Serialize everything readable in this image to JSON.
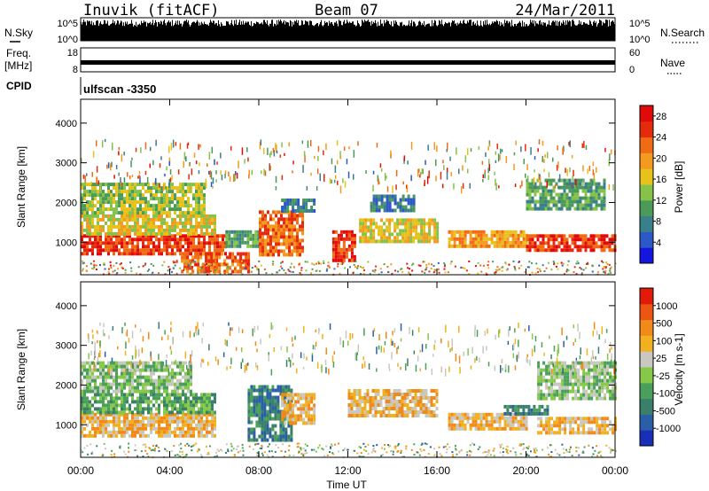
{
  "header": {
    "station": "Inuvik (fitACF)",
    "beam": "Beam 07",
    "date": "24/Mar/2011"
  },
  "top_panels": {
    "nsky_label": "N.Sky",
    "nsky_ticks": [
      "10^5",
      "10^0"
    ],
    "nsearch_label": "N.Search",
    "nsearch_ticks": [
      "10^5",
      "10^0"
    ],
    "freq_label_1": "Freq.",
    "freq_label_2": "[MHz]",
    "freq_ticks": [
      "18",
      "8"
    ],
    "nave_label": "Nave",
    "nave_ticks": [
      "60",
      "0"
    ],
    "cpid_label": "CPID",
    "cpid_value": "ulfscan -3350"
  },
  "chart_data": [
    {
      "type": "heatmap",
      "title": "",
      "xlabel": "Time UT",
      "ylabel": "Slant Range [km]",
      "x_ticks": [
        "00:00",
        "04:00",
        "08:00",
        "12:00",
        "16:00",
        "20:00",
        "00:00"
      ],
      "y_ticks": [
        1000,
        2000,
        3000,
        4000
      ],
      "ylim": [
        180,
        4600
      ],
      "colorbar": {
        "label": "Power [dB]",
        "ticks": [
          4,
          8,
          12,
          16,
          20,
          24,
          28
        ],
        "range": [
          0,
          30
        ],
        "colors": [
          "#1515e0",
          "#2d58c8",
          "#3a7f8c",
          "#4c9a5a",
          "#86c24a",
          "#e6c21a",
          "#f49a1e",
          "#f06b14",
          "#e52a0e",
          "#e10a0a"
        ]
      },
      "regions": [
        {
          "t0": 0.0,
          "t1": 6.5,
          "r0": 750,
          "r1": 1200,
          "level": 27
        },
        {
          "t0": 0.0,
          "t1": 6.0,
          "r0": 1200,
          "r1": 1700,
          "level": 17
        },
        {
          "t0": 0.0,
          "t1": 5.5,
          "r0": 1700,
          "r1": 2500,
          "level": 12
        },
        {
          "t0": 4.5,
          "t1": 7.5,
          "r0": 300,
          "r1": 750,
          "level": 22
        },
        {
          "t0": 6.5,
          "t1": 8.0,
          "r0": 900,
          "r1": 1300,
          "level": 9
        },
        {
          "t0": 8.0,
          "t1": 10.0,
          "r0": 700,
          "r1": 1800,
          "level": 24
        },
        {
          "t0": 9.0,
          "t1": 10.5,
          "r0": 1800,
          "r1": 2100,
          "level": 7
        },
        {
          "t0": 11.3,
          "t1": 12.3,
          "r0": 500,
          "r1": 1300,
          "level": 25
        },
        {
          "t0": 12.5,
          "t1": 16.0,
          "r0": 1000,
          "r1": 1600,
          "level": 18
        },
        {
          "t0": 13.0,
          "t1": 15.0,
          "r0": 1800,
          "r1": 2200,
          "level": 8
        },
        {
          "t0": 16.5,
          "t1": 20.0,
          "r0": 900,
          "r1": 1300,
          "level": 19
        },
        {
          "t0": 20.0,
          "t1": 24.0,
          "r0": 800,
          "r1": 1200,
          "level": 26
        },
        {
          "t0": 20.0,
          "t1": 23.5,
          "r0": 1800,
          "r1": 2600,
          "level": 11
        }
      ]
    },
    {
      "type": "heatmap",
      "title": "",
      "xlabel": "Time UT",
      "ylabel": "Slant Range [km]",
      "x_ticks": [
        "00:00",
        "04:00",
        "08:00",
        "12:00",
        "16:00",
        "20:00",
        "00:00"
      ],
      "y_ticks": [
        1000,
        2000,
        3000,
        4000
      ],
      "ylim": [
        180,
        4600
      ],
      "colorbar": {
        "label": "Velocity [m s-1]",
        "ticks": [
          "1000",
          "500",
          "100",
          "25",
          "-25",
          "-100",
          "-500",
          "-1000"
        ],
        "colors": [
          "#1a2fb8",
          "#2a5fa8",
          "#3a7f6a",
          "#4aa05a",
          "#86c84a",
          "#c8c8c0",
          "#f0b020",
          "#f28a1a",
          "#ec5512",
          "#e11a0a"
        ]
      },
      "regions": [
        {
          "t0": 0.0,
          "t1": 6.0,
          "r0": 700,
          "r1": 1300,
          "level": "-100"
        },
        {
          "t0": 0.0,
          "t1": 6.0,
          "r0": 1300,
          "r1": 1800,
          "level": "100"
        },
        {
          "t0": 0.0,
          "t1": 5.0,
          "r0": 1800,
          "r1": 2600,
          "level": "25"
        },
        {
          "t0": 7.5,
          "t1": 9.5,
          "r0": 600,
          "r1": 2000,
          "level": "500"
        },
        {
          "t0": 9.0,
          "t1": 10.5,
          "r0": 1000,
          "r1": 1800,
          "level": "-100"
        },
        {
          "t0": 12.0,
          "t1": 16.0,
          "r0": 1200,
          "r1": 1900,
          "level": "-100"
        },
        {
          "t0": 16.5,
          "t1": 20.0,
          "r0": 900,
          "r1": 1300,
          "level": "-100"
        },
        {
          "t0": 19.0,
          "t1": 21.0,
          "r0": 1300,
          "r1": 1500,
          "level": "500"
        },
        {
          "t0": 20.5,
          "t1": 24.0,
          "r0": 800,
          "r1": 1200,
          "level": "-100"
        },
        {
          "t0": 20.5,
          "t1": 24.0,
          "r0": 1700,
          "r1": 2600,
          "level": "25"
        }
      ]
    }
  ]
}
